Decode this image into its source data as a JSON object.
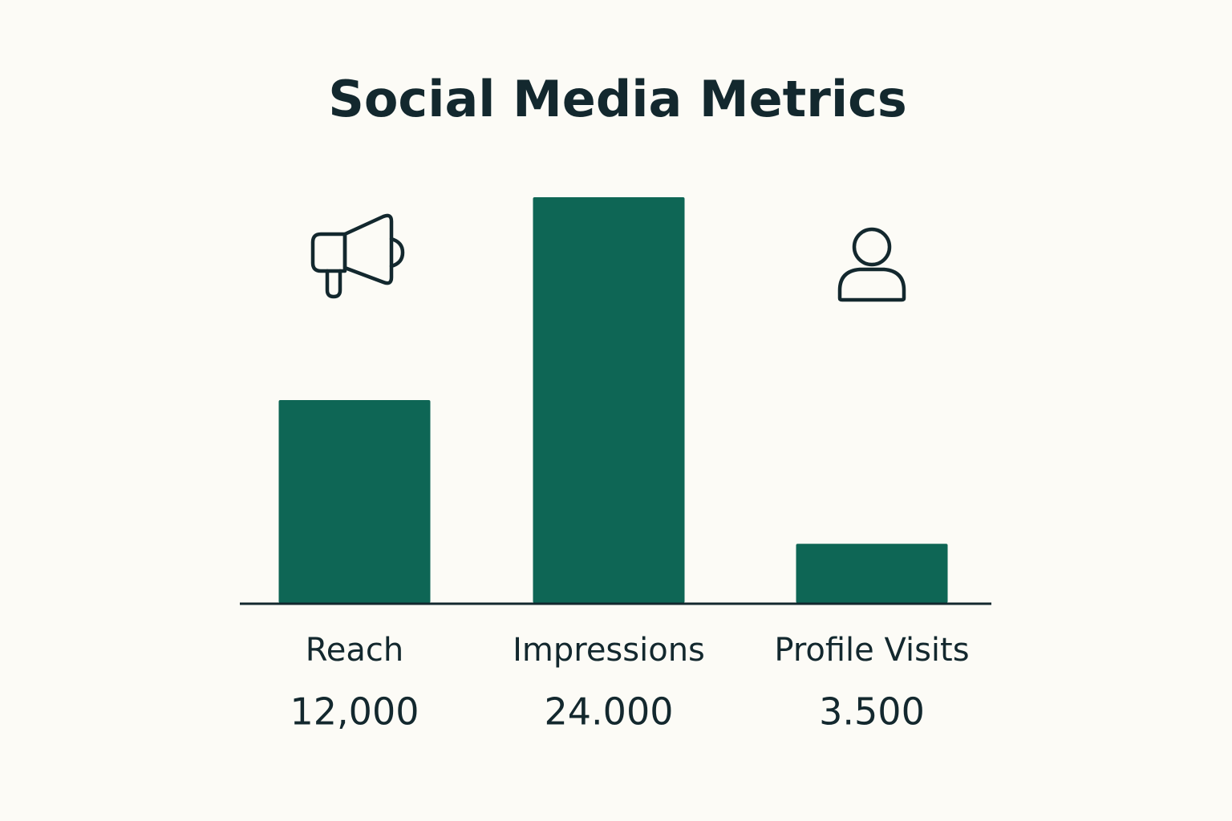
{
  "chart_data": {
    "type": "bar",
    "title": "Social Media Metrics",
    "categories": [
      "Reach",
      "Impressions",
      "Profile Visits"
    ],
    "values": [
      12000,
      24000,
      3500
    ],
    "value_labels": [
      "12,000",
      "24.000",
      "3.500"
    ],
    "color": "#0e6655"
  }
}
